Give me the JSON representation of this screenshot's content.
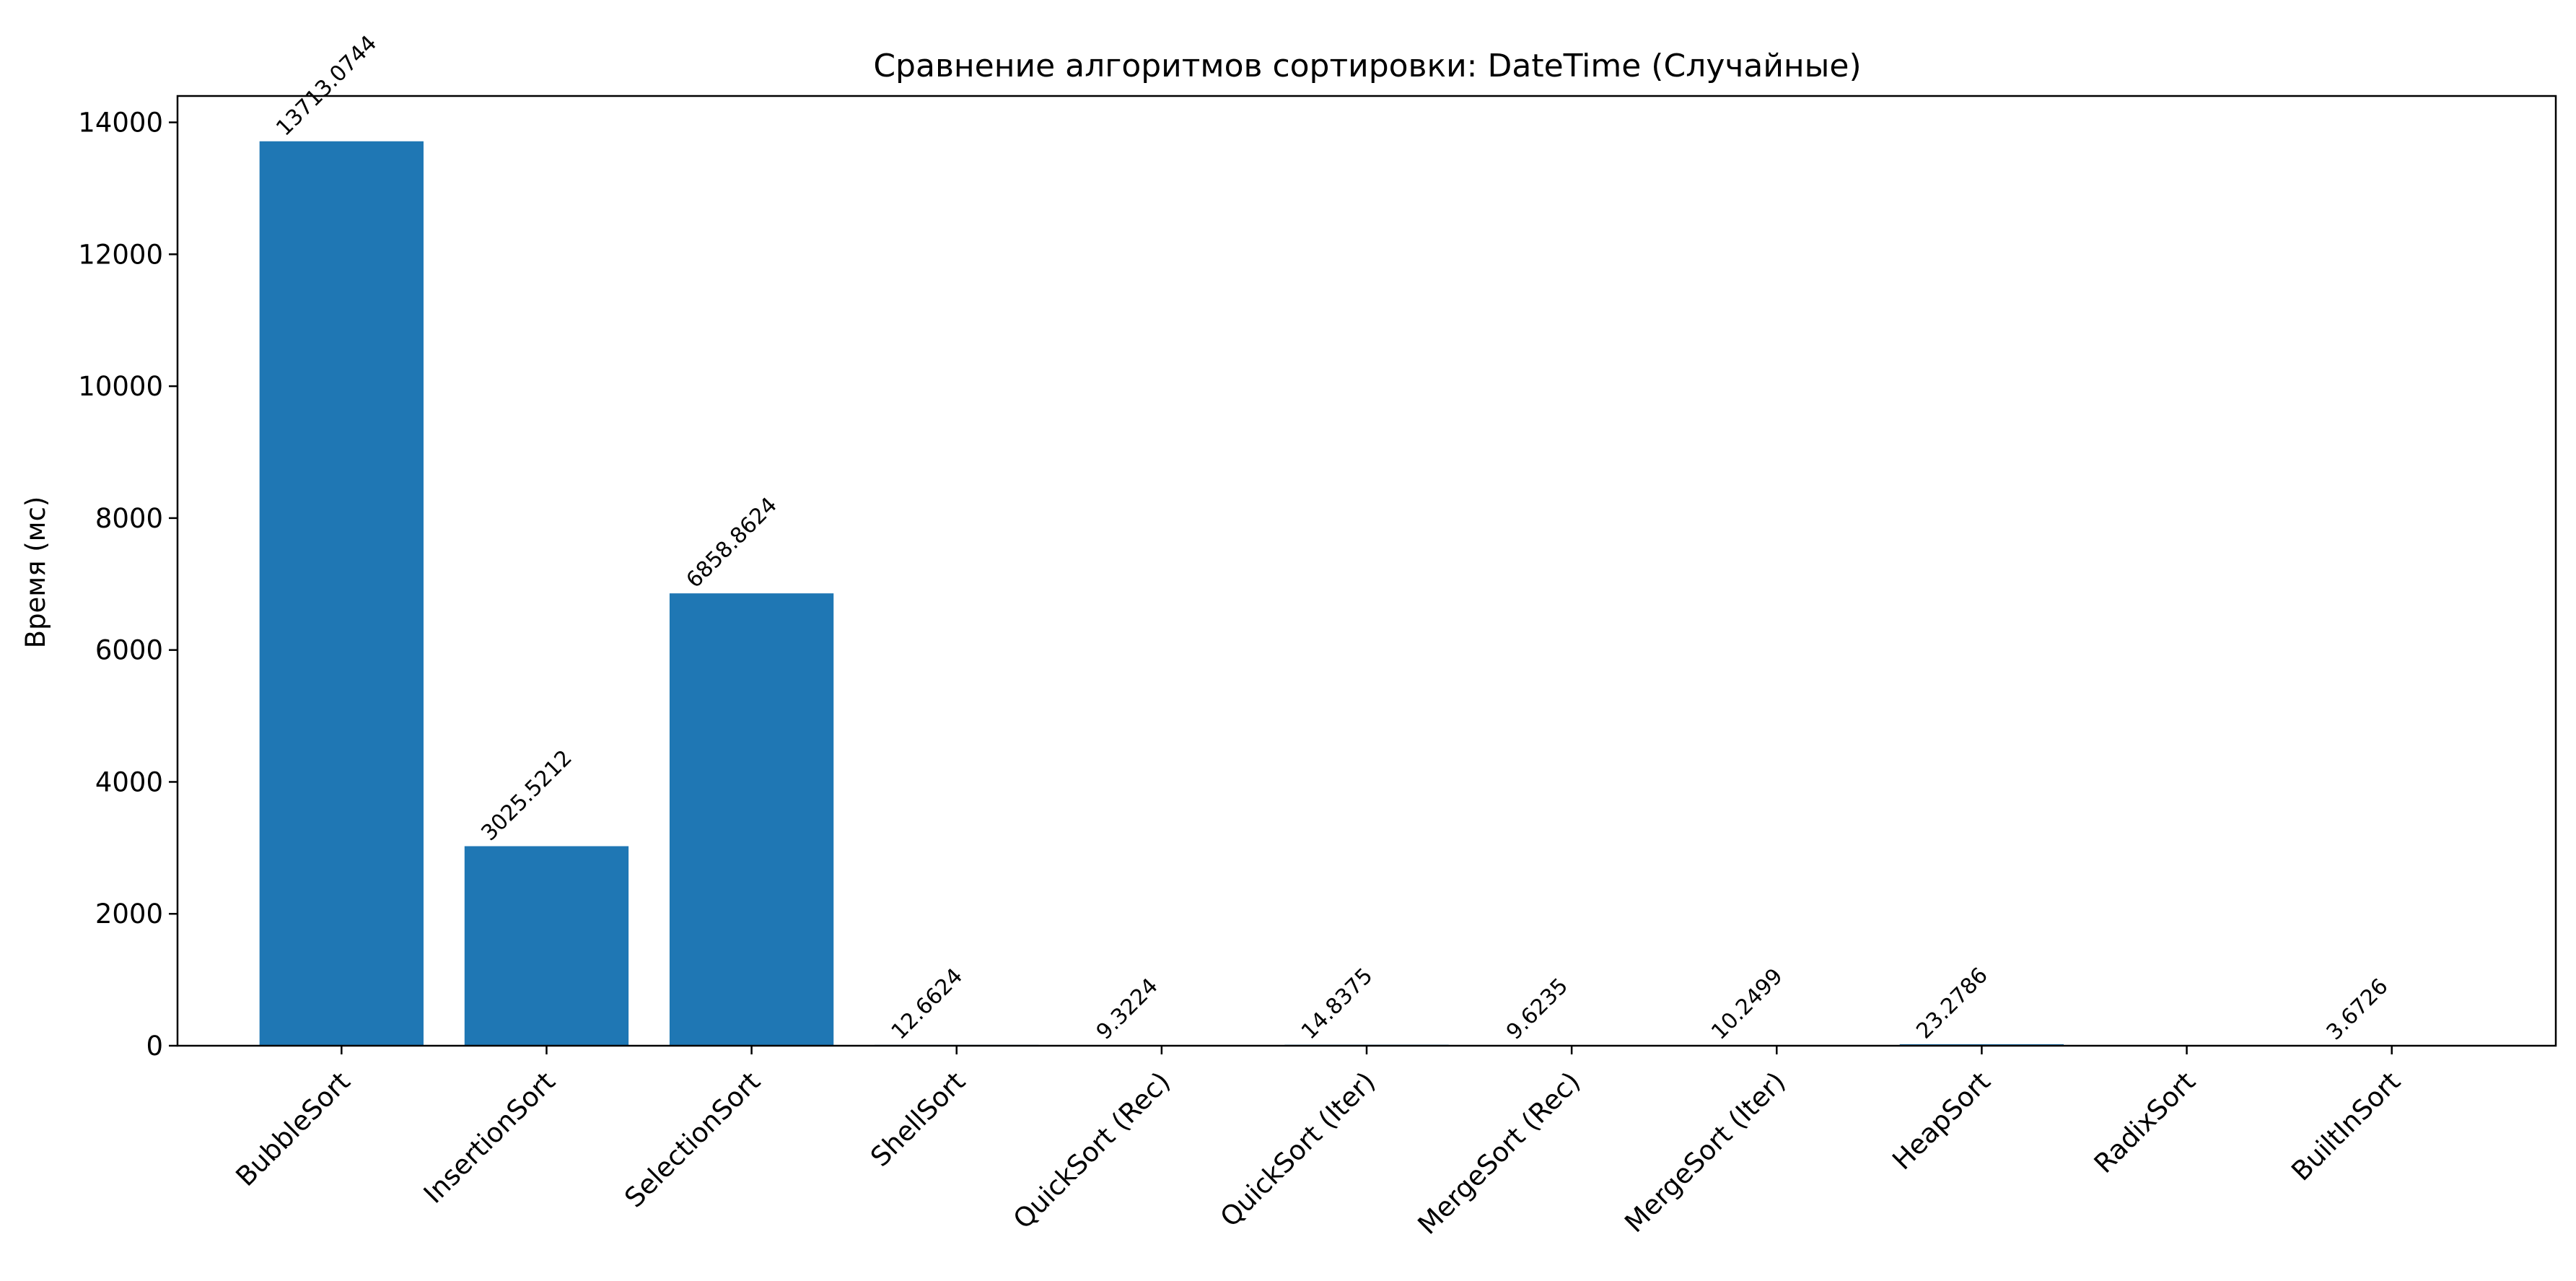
{
  "chart_data": {
    "type": "bar",
    "title": "Сравнение алгоритмов сортировки: DateTime (Случайные)",
    "xlabel": "",
    "ylabel": "Время (мс)",
    "ylim": [
      0,
      14400
    ],
    "yticks": [
      0,
      2000,
      4000,
      6000,
      8000,
      10000,
      12000,
      14000
    ],
    "grid": false,
    "bar_color": "#1f77b4",
    "categories": [
      "BubbleSort",
      "InsertionSort",
      "SelectionSort",
      "ShellSort",
      "QuickSort (Rec)",
      "QuickSort (Iter)",
      "MergeSort (Rec)",
      "MergeSort (Iter)",
      "HeapSort",
      "RadixSort",
      "BuiltInSort"
    ],
    "values": [
      13713.0744,
      3025.5212,
      6858.8624,
      12.6624,
      9.3224,
      14.8375,
      9.6235,
      10.2499,
      23.2786,
      0,
      3.6726
    ],
    "data_labels": [
      "13713.0744",
      "3025.5212",
      "6858.8624",
      "12.6624",
      "9.3224",
      "14.8375",
      "9.6235",
      "10.2499",
      "23.2786",
      "",
      "3.6726"
    ]
  }
}
